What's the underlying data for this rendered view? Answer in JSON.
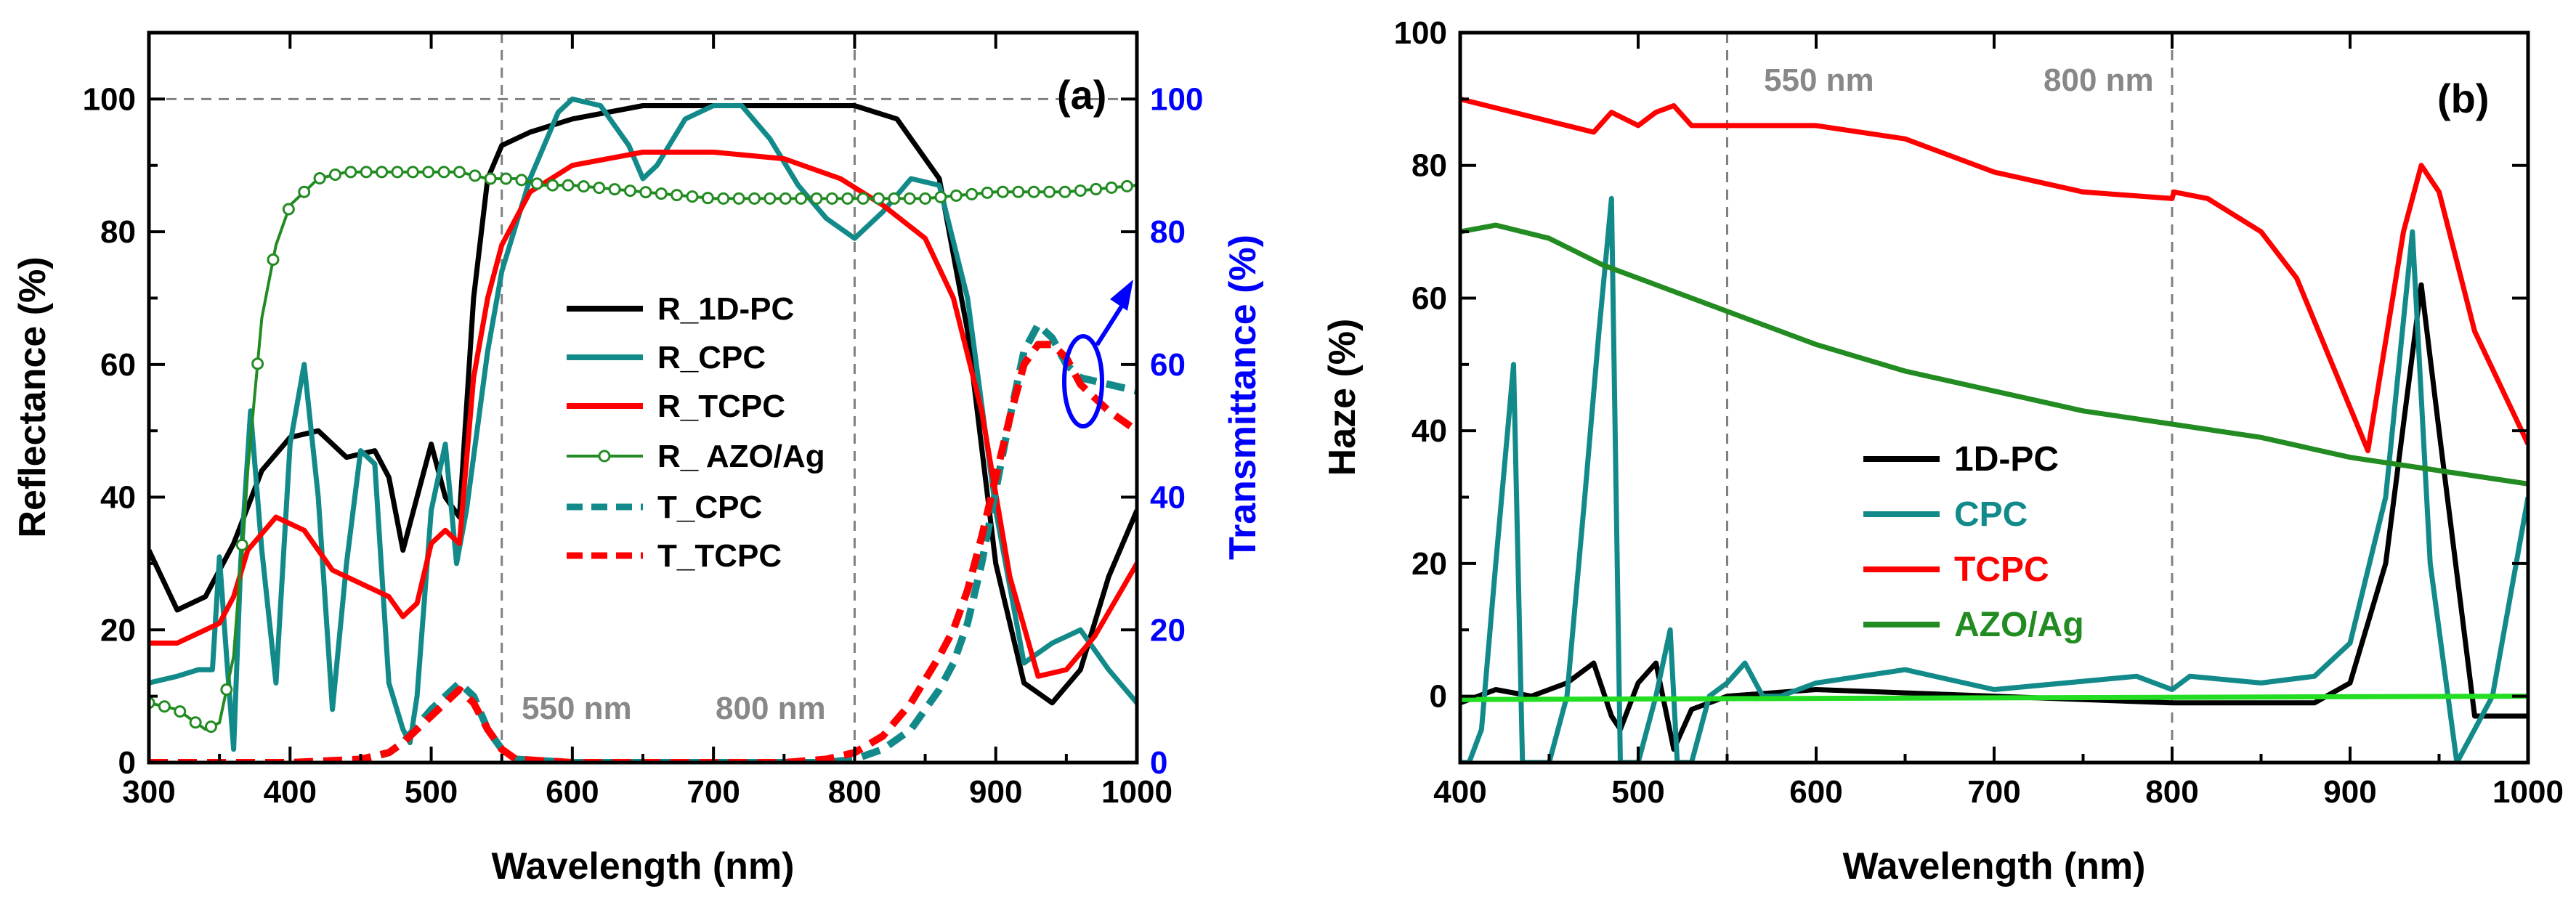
{
  "chart_data": [
    {
      "id": "a",
      "type": "line",
      "panel_label": "(a)",
      "xlabel": "Wavelength (nm)",
      "ylabel": "Reflectance (%)",
      "ylabel_right": "Transmittance (%)",
      "xlim": [
        300,
        1000
      ],
      "ylim": [
        0,
        110
      ],
      "ylim_right": [
        0,
        110
      ],
      "xticks": [
        300,
        400,
        500,
        600,
        700,
        800,
        900,
        1000
      ],
      "yticks": [
        0,
        20,
        40,
        60,
        80,
        100
      ],
      "yticks_right": [
        0,
        20,
        40,
        60,
        80,
        100
      ],
      "xtick_labels": [
        "300",
        "400",
        "500",
        "600",
        "700",
        "800",
        "900",
        "1000"
      ],
      "ytick_labels": [
        "0",
        "20",
        "40",
        "60",
        "80",
        "100"
      ],
      "ytick_labels_right": [
        "0",
        "20",
        "40",
        "60",
        "80",
        "100"
      ],
      "vlines": [
        550,
        800
      ],
      "hline": 100,
      "annotations": [
        "550 nm",
        "800 nm"
      ],
      "legend_position": "center",
      "colors": {
        "axis_right": "#0000ff"
      },
      "series": [
        {
          "name": "R_1D-PC",
          "color": "#000000",
          "style": "solid",
          "x": [
            300,
            320,
            340,
            360,
            380,
            400,
            420,
            440,
            460,
            470,
            480,
            490,
            500,
            510,
            520,
            530,
            540,
            550,
            570,
            600,
            650,
            700,
            750,
            800,
            830,
            860,
            880,
            900,
            920,
            940,
            960,
            980,
            1000
          ],
          "y": [
            32,
            23,
            25,
            33,
            44,
            49,
            50,
            46,
            47,
            43,
            32,
            40,
            48,
            40,
            37,
            70,
            88,
            93,
            95,
            97,
            99,
            99,
            99,
            99,
            97,
            88,
            65,
            30,
            12,
            9,
            14,
            28,
            38
          ]
        },
        {
          "name": "R_CPC",
          "color": "#138a8a",
          "style": "solid",
          "x": [
            300,
            320,
            335,
            345,
            350,
            355,
            360,
            365,
            372,
            380,
            390,
            400,
            410,
            420,
            430,
            440,
            450,
            460,
            470,
            480,
            485,
            490,
            500,
            510,
            518,
            525,
            540,
            550,
            570,
            590,
            600,
            620,
            640,
            650,
            660,
            680,
            700,
            720,
            740,
            760,
            780,
            800,
            820,
            840,
            860,
            880,
            900,
            920,
            940,
            960,
            980,
            1000
          ],
          "y": [
            12,
            13,
            14,
            14,
            31,
            16,
            2,
            30,
            53,
            32,
            12,
            48,
            60,
            40,
            8,
            30,
            47,
            45,
            12,
            5,
            3,
            10,
            38,
            48,
            30,
            38,
            62,
            74,
            88,
            98,
            100,
            99,
            93,
            88,
            90,
            97,
            99,
            99,
            94,
            87,
            82,
            79,
            83,
            88,
            87,
            70,
            38,
            15,
            18,
            20,
            14,
            9
          ]
        },
        {
          "name": "R_TCPC",
          "color": "#ff0000",
          "style": "solid",
          "x": [
            300,
            320,
            340,
            350,
            360,
            370,
            390,
            410,
            430,
            450,
            470,
            480,
            490,
            500,
            510,
            520,
            530,
            540,
            550,
            570,
            600,
            650,
            700,
            750,
            790,
            820,
            850,
            870,
            890,
            910,
            930,
            950,
            970,
            1000
          ],
          "y": [
            18,
            18,
            20,
            21,
            25,
            32,
            37,
            35,
            29,
            27,
            25,
            22,
            24,
            33,
            35,
            33,
            58,
            70,
            78,
            86,
            90,
            92,
            92,
            91,
            88,
            84,
            79,
            70,
            53,
            28,
            13,
            14,
            19,
            30
          ]
        },
        {
          "name": "R_ AZO/Ag",
          "color": "#228b22",
          "style": "solid",
          "marker": "circle-open",
          "x": [
            300,
            320,
            340,
            350,
            360,
            370,
            380,
            390,
            400,
            420,
            440,
            460,
            480,
            500,
            520,
            540,
            560,
            580,
            600,
            650,
            700,
            750,
            800,
            850,
            900,
            950,
            1000
          ],
          "y": [
            9,
            8,
            5,
            6,
            16,
            44,
            67,
            78,
            84,
            88,
            89,
            89,
            89,
            89,
            89,
            88,
            88,
            87,
            87,
            86,
            85,
            85,
            85,
            85,
            86,
            86,
            87
          ]
        },
        {
          "name": "T_CPC",
          "color": "#138a8a",
          "style": "dashed",
          "x": [
            300,
            400,
            450,
            470,
            480,
            500,
            510,
            520,
            530,
            540,
            550,
            560,
            600,
            700,
            750,
            780,
            800,
            820,
            840,
            860,
            870,
            880,
            890,
            900,
            910,
            920,
            930,
            940,
            950,
            960,
            980,
            1000
          ],
          "y": [
            0,
            0,
            0.3,
            1.5,
            3,
            8,
            10,
            12,
            10,
            5,
            2,
            0.5,
            0,
            0,
            0,
            0,
            0.5,
            2,
            5,
            11,
            15,
            21,
            30,
            41,
            52,
            62,
            66,
            64,
            60,
            58,
            57,
            56
          ]
        },
        {
          "name": "T_TCPC",
          "color": "#ff0000",
          "style": "dashed",
          "x": [
            300,
            400,
            450,
            470,
            480,
            490,
            500,
            510,
            520,
            530,
            540,
            550,
            560,
            600,
            700,
            750,
            780,
            800,
            820,
            840,
            860,
            870,
            880,
            890,
            900,
            910,
            920,
            930,
            940,
            950,
            960,
            980,
            1000
          ],
          "y": [
            0,
            0,
            0.5,
            1.5,
            3,
            5,
            7,
            9,
            11,
            9,
            5,
            2,
            0.5,
            0,
            0,
            0,
            0.5,
            1.5,
            4,
            9,
            16,
            20,
            26,
            34,
            43,
            52,
            60,
            63,
            63,
            61,
            57,
            53,
            50
          ]
        }
      ]
    },
    {
      "id": "b",
      "type": "line",
      "panel_label": "(b)",
      "xlabel": "Wavelength (nm)",
      "ylabel": "Haze (%)",
      "xlim": [
        400,
        1000
      ],
      "ylim": [
        -10,
        100
      ],
      "xticks": [
        400,
        500,
        600,
        700,
        800,
        900,
        1000
      ],
      "yticks": [
        0,
        20,
        40,
        60,
        80,
        100
      ],
      "xtick_labels": [
        "400",
        "500",
        "600",
        "700",
        "800",
        "900",
        "1000"
      ],
      "ytick_labels": [
        "0",
        "20",
        "40",
        "60",
        "80",
        "100"
      ],
      "vlines": [
        550,
        800
      ],
      "annotations": [
        "550 nm",
        "800 nm"
      ],
      "legend_position": "bottom-left",
      "series": [
        {
          "name": "1D-PC",
          "color": "#000000",
          "style": "solid",
          "x": [
            400,
            420,
            440,
            460,
            475,
            485,
            490,
            500,
            510,
            520,
            530,
            550,
            600,
            700,
            800,
            850,
            880,
            900,
            920,
            940,
            950,
            970,
            1000
          ],
          "y": [
            -1,
            1,
            0,
            2,
            5,
            -3,
            -5,
            2,
            5,
            -8,
            -2,
            0,
            1,
            0,
            -1,
            -1,
            -1,
            2,
            20,
            62,
            40,
            -3,
            -3
          ]
        },
        {
          "name": "CPC",
          "color": "#138a8a",
          "style": "solid",
          "x": [
            400,
            405,
            412,
            420,
            430,
            435,
            440,
            450,
            460,
            470,
            478,
            485,
            490,
            500,
            510,
            518,
            522,
            530,
            540,
            550,
            560,
            570,
            580,
            600,
            650,
            700,
            780,
            800,
            810,
            850,
            880,
            900,
            920,
            935,
            945,
            960,
            980,
            1000
          ],
          "y": [
            -10,
            -10,
            -5,
            20,
            50,
            -10,
            -10,
            -10,
            0,
            30,
            55,
            75,
            -10,
            -10,
            0,
            10,
            -10,
            -10,
            0,
            2,
            5,
            0,
            0,
            2,
            4,
            1,
            3,
            1,
            3,
            2,
            3,
            8,
            30,
            70,
            20,
            -10,
            0,
            30
          ]
        },
        {
          "name": "TCPC",
          "color": "#ff0000",
          "style": "solid",
          "x": [
            400,
            430,
            460,
            475,
            485,
            500,
            510,
            520,
            530,
            550,
            580,
            600,
            650,
            700,
            750,
            800,
            801,
            820,
            850,
            870,
            890,
            910,
            930,
            940,
            950,
            970,
            1000
          ],
          "y": [
            90,
            88,
            86,
            85,
            88,
            86,
            88,
            89,
            86,
            86,
            86,
            86,
            84,
            79,
            76,
            75,
            76,
            75,
            70,
            63,
            50,
            37,
            70,
            80,
            76,
            55,
            38
          ]
        },
        {
          "name": "AZO/Ag",
          "color": "#228b22",
          "style": "solid",
          "x": [
            400,
            420,
            450,
            480,
            500,
            550,
            600,
            650,
            700,
            750,
            800,
            850,
            900,
            950,
            1000
          ],
          "y": [
            70,
            71,
            69,
            65,
            63,
            58,
            53,
            49,
            46,
            43,
            41,
            39,
            36,
            34,
            32
          ]
        },
        {
          "name": "",
          "color": "#22dd22",
          "style": "solid",
          "x": [
            400,
            1000
          ],
          "y": [
            -0.5,
            0
          ]
        }
      ]
    }
  ]
}
